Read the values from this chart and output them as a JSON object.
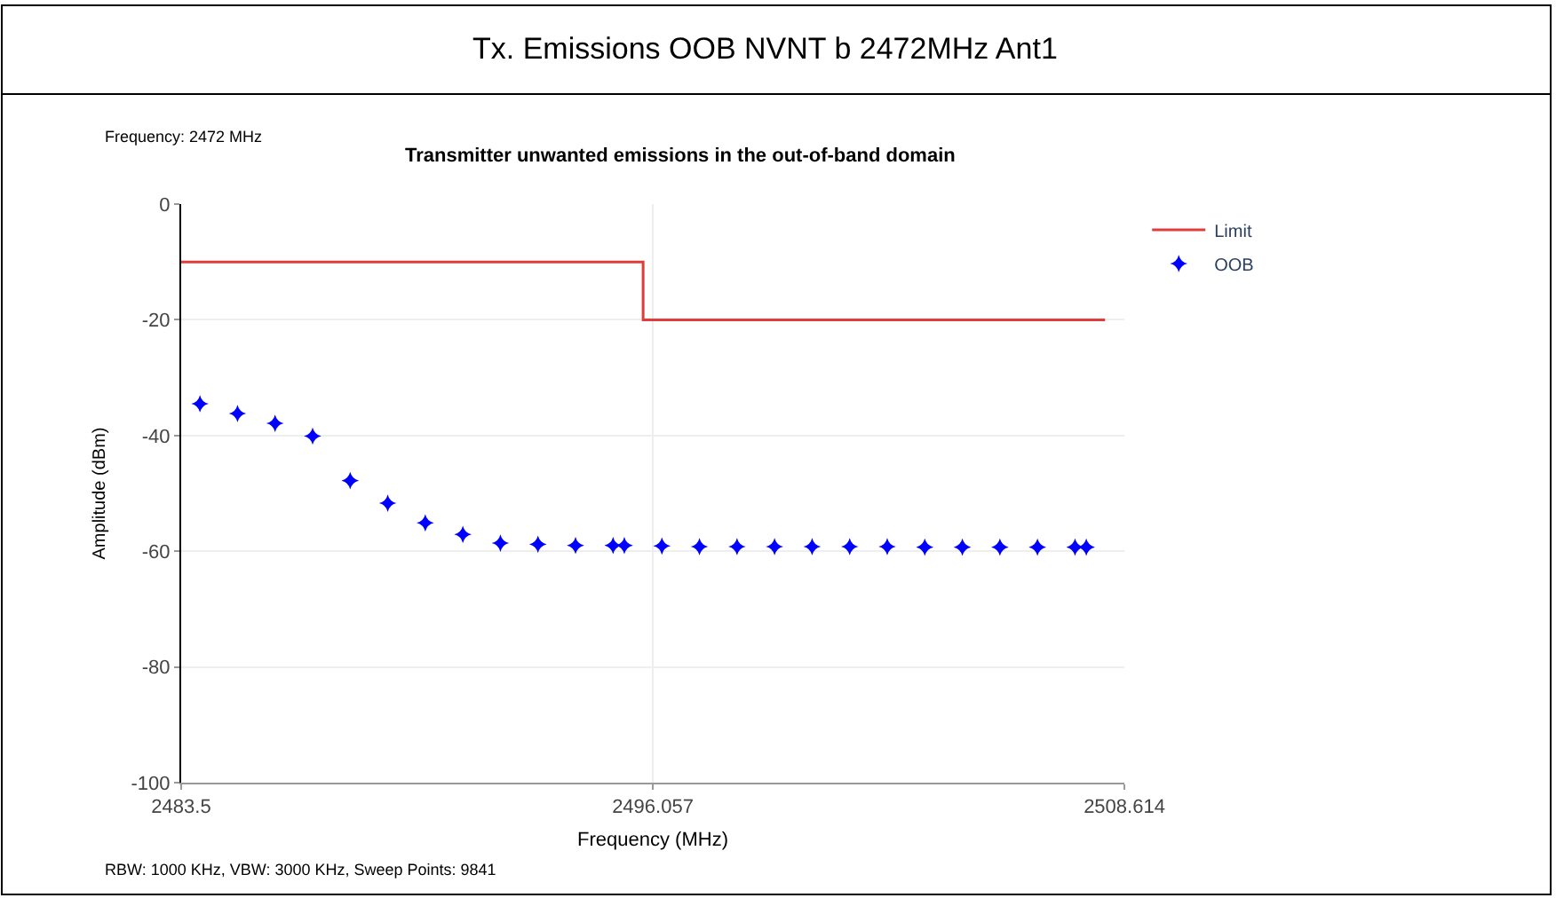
{
  "chart_data": {
    "type": "scatter",
    "title": "Tx. Emissions OOB NVNT b 2472MHz Ant1",
    "subtitle": "Transmitter unwanted emissions in the out-of-band domain",
    "xlabel": "Frequency (MHz)",
    "ylabel": "Amplitude (dBm)",
    "annotations": [
      "Frequency: 2472 MHz",
      "RBW: 1000 KHz, VBW: 3000 KHz, Sweep Points: 9841"
    ],
    "series": [
      {
        "name": "Limit",
        "type": "line",
        "color": "#e03c3c",
        "marker": "none",
        "x": [
          2483.5,
          2495.8,
          2495.8,
          2508.1
        ],
        "values": [
          -10,
          -10,
          -20,
          -20
        ]
      },
      {
        "name": "OOB",
        "color": "#0000ff",
        "marker": "star",
        "x": [
          2484.0,
          2485.0,
          2486.0,
          2487.0,
          2488.0,
          2489.0,
          2490.0,
          2491.0,
          2492.0,
          2493.0,
          2494.0,
          2495.0,
          2495.3,
          2496.3,
          2497.3,
          2498.3,
          2499.3,
          2500.3,
          2501.3,
          2502.3,
          2503.3,
          2504.3,
          2505.3,
          2506.3,
          2507.3,
          2507.6
        ],
        "values": [
          -34.5,
          -36.2,
          -37.9,
          -40.1,
          -47.8,
          -51.7,
          -55.1,
          -57.1,
          -58.6,
          -58.8,
          -59.0,
          -59.0,
          -59.0,
          -59.1,
          -59.2,
          -59.2,
          -59.2,
          -59.2,
          -59.2,
          -59.2,
          -59.3,
          -59.3,
          -59.3,
          -59.3,
          -59.3,
          -59.3
        ]
      }
    ],
    "xlim": [
      2483.5,
      2508.614
    ],
    "xticks": [
      2483.5,
      2496.057,
      2508.614
    ],
    "ylim": [
      -100,
      0
    ],
    "yticks": [
      -100,
      -80,
      -60,
      -40,
      -20,
      0
    ],
    "grid": true,
    "legend": "top right"
  }
}
